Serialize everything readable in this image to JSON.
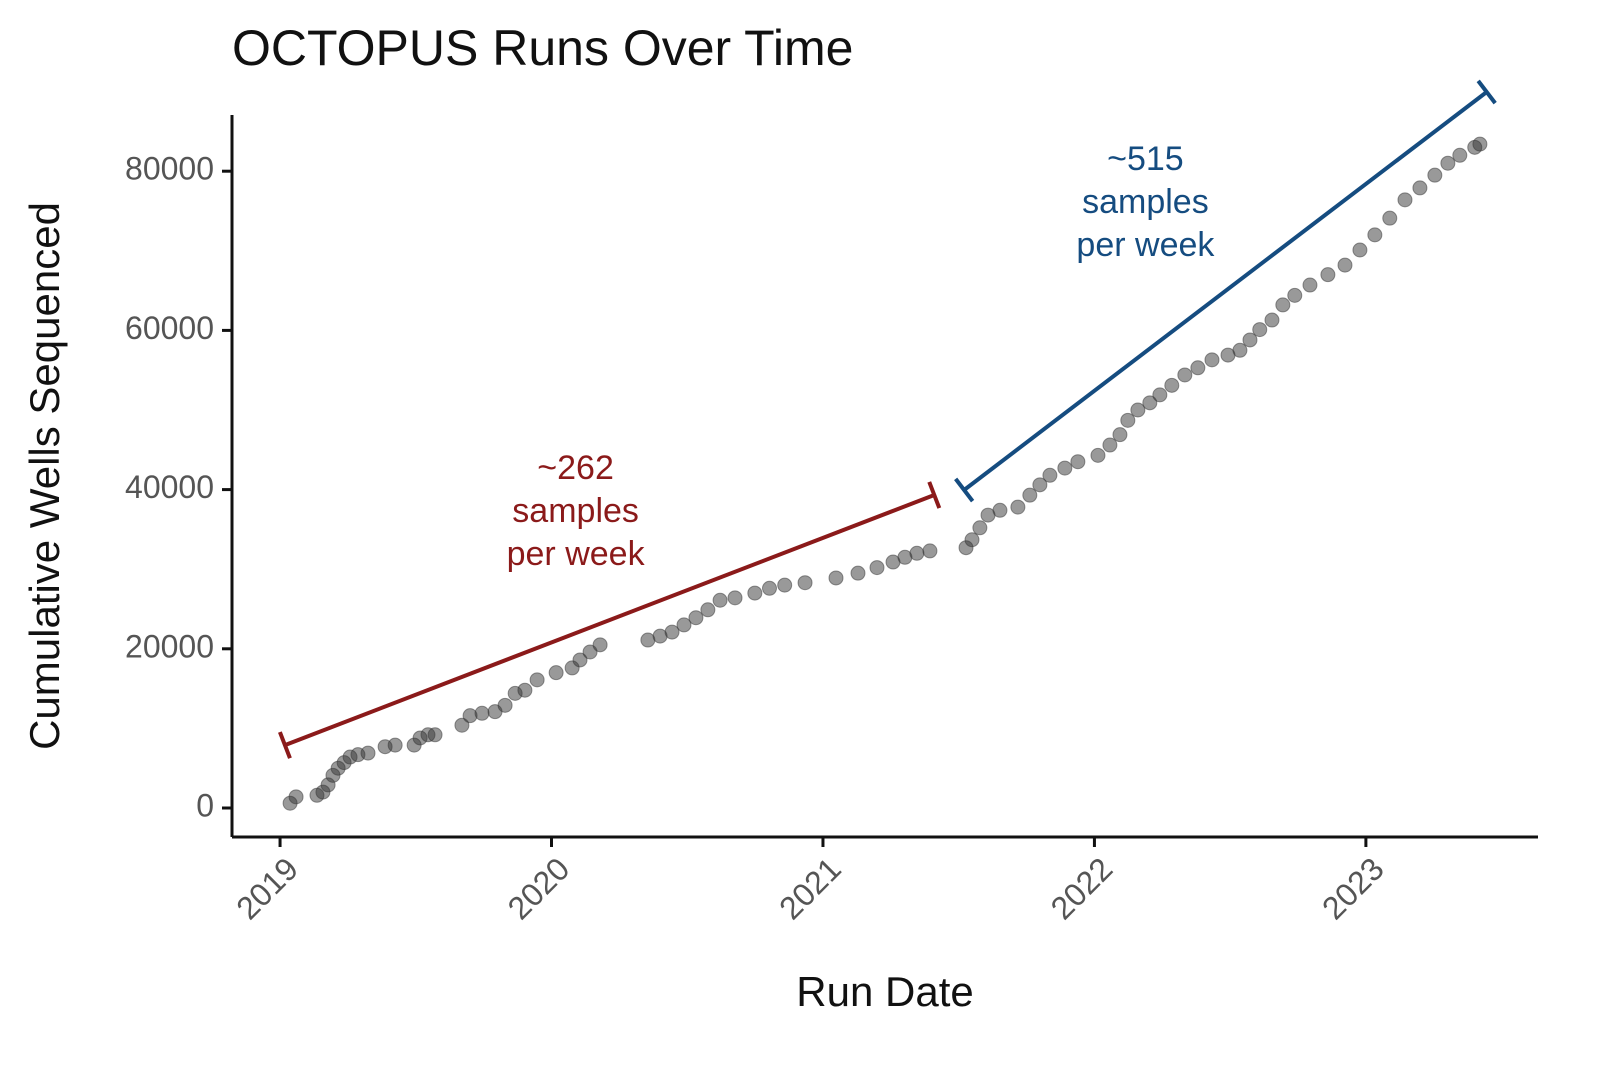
{
  "chart_data": {
    "type": "scatter",
    "title": "OCTOPUS Runs Over Time",
    "x_label": "Run Date",
    "y_label": "Cumulative Wells Sequenced",
    "xlim": [
      2018.823,
      2023.634
    ],
    "xticks": [
      2019,
      2020,
      2021,
      2022,
      2023
    ],
    "ylim": [
      -3643,
      87060
    ],
    "yticks": [
      0,
      20000,
      40000,
      60000,
      80000
    ],
    "grid": false,
    "color": "#333333",
    "opacity": 0.5,
    "x": [
      2019.037,
      2019.059,
      2019.136,
      2019.158,
      2019.177,
      2019.195,
      2019.214,
      2019.236,
      2019.258,
      2019.287,
      2019.324,
      2019.387,
      2019.424,
      2019.494,
      2019.516,
      2019.545,
      2019.571,
      2019.67,
      2019.7,
      2019.744,
      2019.792,
      2019.829,
      2019.866,
      2019.902,
      2019.947,
      2020.017,
      2020.076,
      2020.105,
      2020.142,
      2020.179,
      2020.355,
      2020.4,
      2020.444,
      2020.488,
      2020.532,
      2020.576,
      2020.621,
      2020.676,
      2020.749,
      2020.803,
      2020.859,
      2020.934,
      2021.048,
      2021.129,
      2021.199,
      2021.258,
      2021.302,
      2021.346,
      2021.394,
      2021.527,
      2021.549,
      2021.578,
      2021.608,
      2021.652,
      2021.718,
      2021.762,
      2021.799,
      2021.836,
      2021.891,
      2021.939,
      2022.013,
      2022.057,
      2022.094,
      2022.123,
      2022.16,
      2022.204,
      2022.241,
      2022.285,
      2022.333,
      2022.381,
      2022.433,
      2022.492,
      2022.536,
      2022.573,
      2022.609,
      2022.654,
      2022.694,
      2022.738,
      2022.794,
      2022.86,
      2022.923,
      2022.978,
      2023.033,
      2023.088,
      2023.144,
      2023.199,
      2023.254,
      2023.302,
      2023.346,
      2023.401,
      2023.42
    ],
    "values": [
      600,
      1400,
      1600,
      2000,
      2900,
      4100,
      5000,
      5700,
      6400,
      6700,
      6900,
      7700,
      7900,
      7900,
      8800,
      9200,
      9200,
      10400,
      11600,
      11900,
      12100,
      12900,
      14400,
      14800,
      16100,
      17000,
      17600,
      18600,
      19600,
      20500,
      21100,
      21600,
      22100,
      23000,
      23900,
      24900,
      26100,
      26400,
      27000,
      27600,
      28000,
      28300,
      28900,
      29500,
      30200,
      30900,
      31500,
      32000,
      32300,
      32700,
      33700,
      35200,
      36800,
      37400,
      37800,
      39300,
      40600,
      41800,
      42700,
      43500,
      44300,
      45600,
      46900,
      48700,
      50000,
      50900,
      51900,
      53100,
      54400,
      55300,
      56300,
      56900,
      57500,
      58800,
      60100,
      61300,
      63200,
      64400,
      65700,
      67000,
      68200,
      70100,
      72000,
      74100,
      76400,
      77900,
      79500,
      81000,
      82000,
      83000,
      83400
    ],
    "annotations": [
      {
        "x": [
          2019.018,
          2021.41
        ],
        "y": [
          7900,
          39320
        ],
        "color": "#8b1a1a",
        "lines": [
          "~262",
          "samples",
          "per week"
        ]
      },
      {
        "x": [
          2021.52,
          2023.445
        ],
        "y": [
          39950,
          89950
        ],
        "color": "#154c80",
        "lines": [
          "~515",
          "samples",
          "per week"
        ]
      }
    ]
  }
}
